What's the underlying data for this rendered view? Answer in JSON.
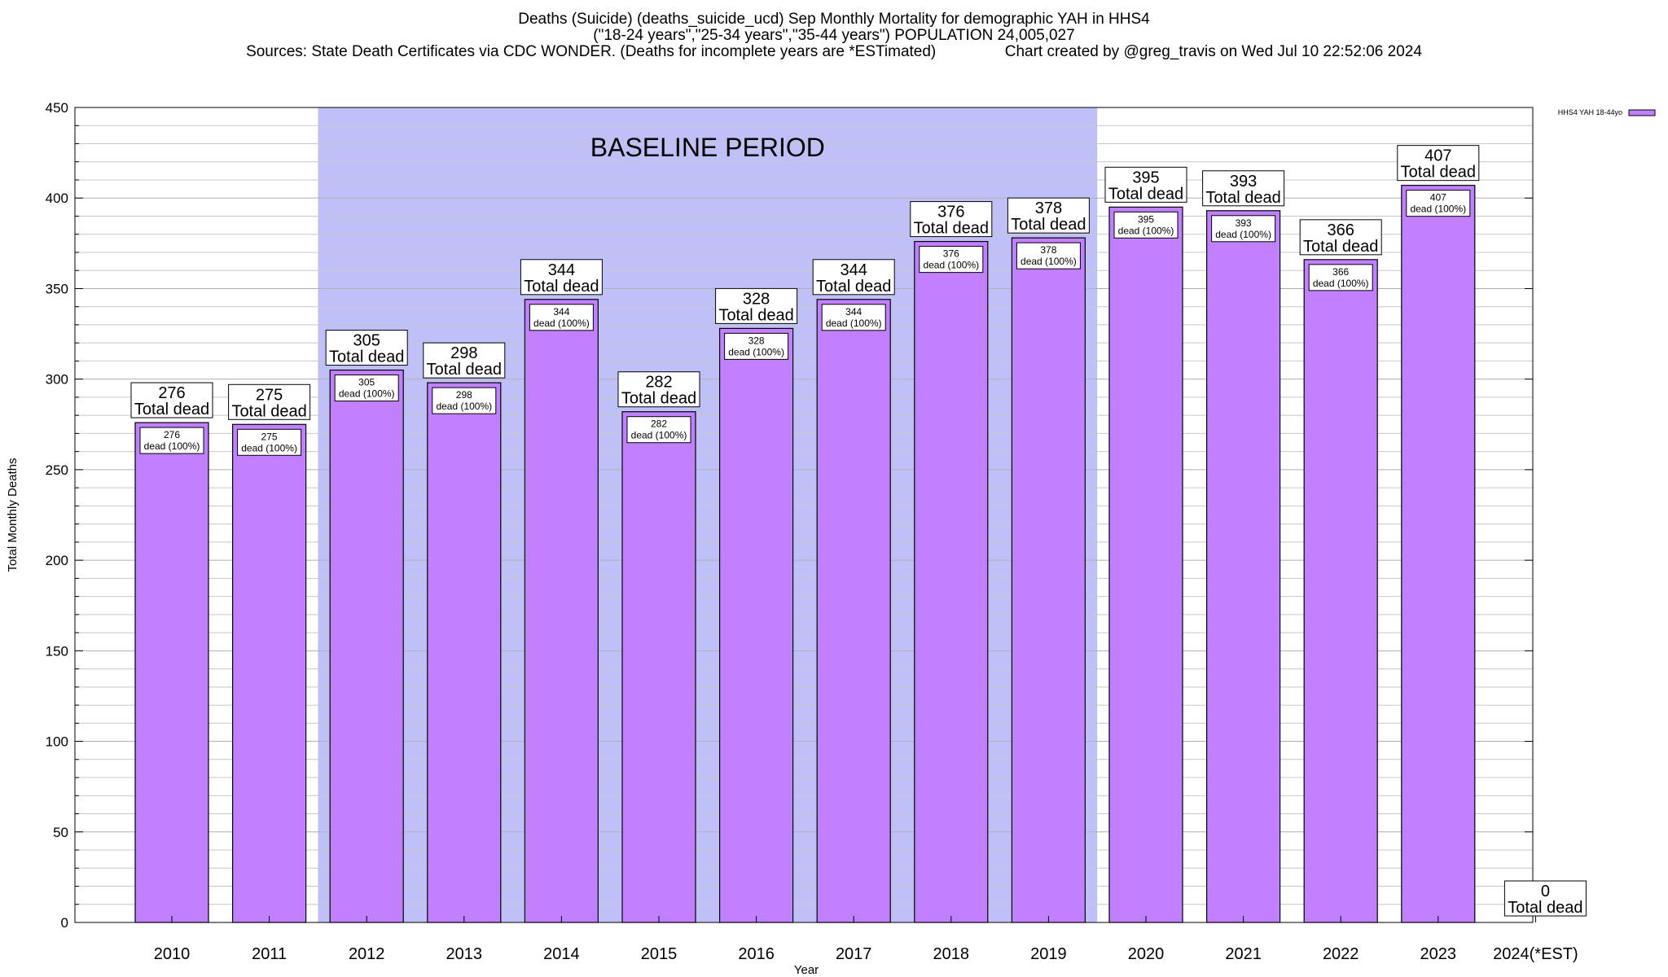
{
  "header": {
    "title_line1": "Deaths (Suicide) (deaths_suicide_ucd) Sep Monthly Mortality for demographic YAH in HHS4",
    "title_line2": "(\"18-24 years\",\"25-34 years\",\"35-44 years\") POPULATION 24,005,027",
    "title_line3": "Sources: State Death Certificates via CDC WONDER. (Deaths for incomplete years are *ESTimated)                Chart created by @greg_travis on Wed Jul 10 22:52:06 2024"
  },
  "chart_data": {
    "type": "bar",
    "xlabel": "Year",
    "ylabel": "Total Monthly Deaths",
    "ylim": [
      0,
      450
    ],
    "y_ticks": [
      0,
      50,
      100,
      150,
      200,
      250,
      300,
      350,
      400,
      450
    ],
    "grid": true,
    "legend_position": "top-right",
    "categories": [
      "2010",
      "2011",
      "2012",
      "2013",
      "2014",
      "2015",
      "2016",
      "2017",
      "2018",
      "2019",
      "2020",
      "2021",
      "2022",
      "2023",
      "2024(*EST)"
    ],
    "series": [
      {
        "name": "HHS4 YAH 18-44yo",
        "values": [
          276,
          275,
          305,
          298,
          344,
          282,
          328,
          344,
          376,
          378,
          395,
          393,
          366,
          407,
          0
        ]
      }
    ],
    "top_label_suffix": "Total dead",
    "inner_label_suffix": "dead (100%)",
    "baseline_annotation": {
      "text": "BASELINE PERIOD",
      "start_category": "2012",
      "end_category": "2019"
    },
    "colors": {
      "bar": "#c080ff",
      "bar_edge": "#000000",
      "baseline_shade": "#c0c0f8",
      "grid": "#c8c8c8"
    }
  }
}
